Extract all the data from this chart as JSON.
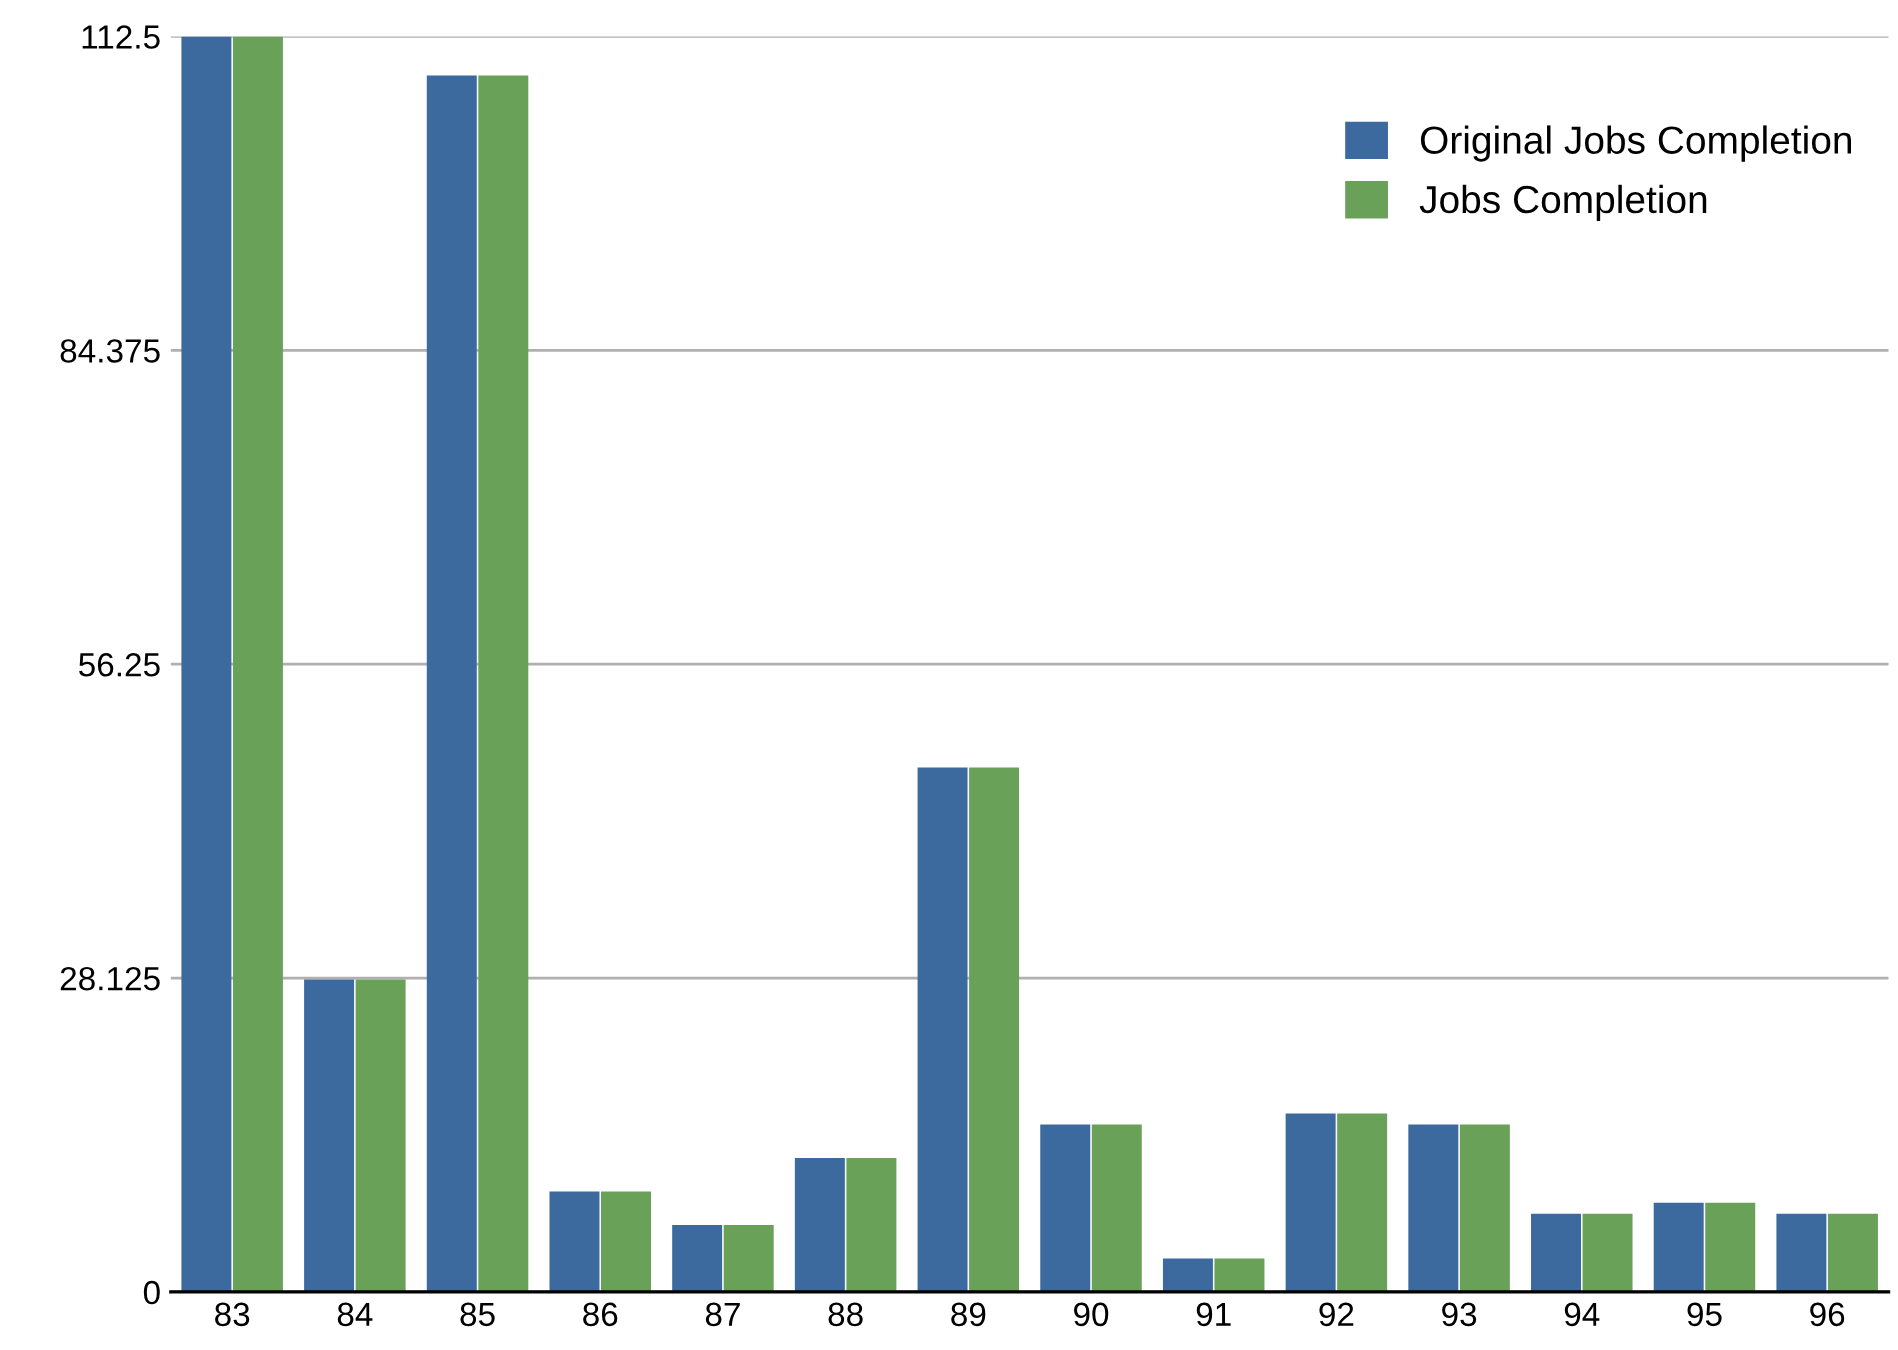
{
  "chart_data": {
    "type": "bar",
    "categories": [
      "83",
      "84",
      "85",
      "86",
      "87",
      "88",
      "89",
      "90",
      "91",
      "92",
      "93",
      "94",
      "95",
      "96"
    ],
    "series": [
      {
        "name": "Original Jobs Completion",
        "color": "#3d6a9e",
        "values": [
          112.5,
          28,
          109,
          9,
          6,
          12,
          47,
          15,
          3,
          16,
          15,
          7,
          8,
          7
        ]
      },
      {
        "name": "Jobs Completion",
        "color": "#6aa158",
        "values": [
          112.5,
          28,
          109,
          9,
          6,
          12,
          47,
          15,
          3,
          16,
          15,
          7,
          8,
          7
        ]
      }
    ],
    "ylim": [
      0,
      112.5
    ],
    "yticks": [
      0,
      28.125,
      56.25,
      84.375,
      112.5
    ],
    "grid": "y",
    "legend": "top right"
  }
}
